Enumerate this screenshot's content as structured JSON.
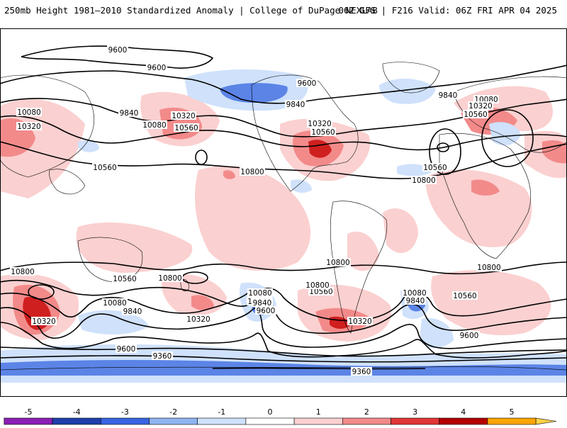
{
  "header": {
    "left_title": "250mb Height 1981–2010 Standardized Anomaly | College of DuPage NEXLAB",
    "right_title": "06Z GFS | F216 Valid: 06Z FRI APR 04 2025"
  },
  "contour_labels": [
    "9600",
    "9600",
    "9600",
    "9840",
    "9840",
    "10080",
    "10080",
    "10320",
    "10560",
    "10800",
    "10320",
    "10560",
    "10320",
    "10560",
    "10800",
    "10800",
    "9840",
    "10080",
    "10320",
    "10560",
    "10560",
    "10800",
    "10800",
    "10080",
    "10560",
    "10800",
    "10080",
    "9840",
    "10320",
    "10080",
    "9840",
    "9600",
    "10560",
    "10320",
    "10080",
    "9840",
    "9600",
    "9360",
    "9360",
    "10320",
    "10560",
    "10800"
  ],
  "colorbar": {
    "ticks": [
      "-5",
      "-4",
      "-3",
      "-2",
      "-1",
      "0",
      "1",
      "2",
      "3",
      "4",
      "5"
    ],
    "colors": [
      "#e066e0",
      "#8a1fb5",
      "#1f3faa",
      "#3a64e0",
      "#8fb4f0",
      "#cfe1fb",
      "#ffffff",
      "#fbd0d0",
      "#f38a8a",
      "#e23636",
      "#b30000",
      "#ffa500",
      "#ffd24a"
    ]
  }
}
